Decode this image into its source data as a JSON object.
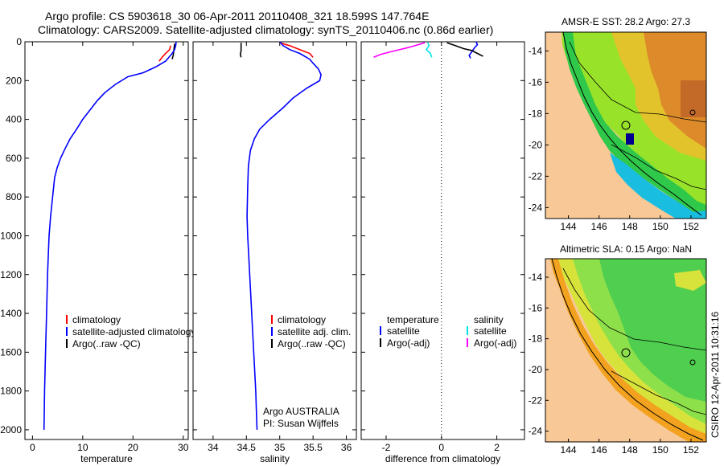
{
  "header": {
    "title_line1": "Argo profile: CS 5903618_30 06-Apr-2011 20110408_321 18.599S 147.764E",
    "title_line2": "Climatology: CARS2009. Satellite-adjusted climatology: synTS_20110406.nc (0.86d earlier)"
  },
  "side_label": "CSIRO 12-Apr-2011 10:31:16",
  "colors": {
    "climatology": "#ff0000",
    "satellite": "#0000ff",
    "argo": "#000000",
    "sat_salinity": "#00e5e5",
    "argo_salinity": "#ff00ff",
    "land": "#f8c896"
  },
  "chart_data": [
    {
      "id": "temperature",
      "type": "line",
      "xlabel": "temperature",
      "xlim": [
        -1.5,
        31
      ],
      "ylim": [
        0,
        2050
      ],
      "y_inverted": true,
      "xticks": [
        0,
        10,
        20,
        30
      ],
      "yticks": [
        0,
        200,
        400,
        600,
        800,
        1000,
        1200,
        1400,
        1600,
        1800,
        2000
      ],
      "legend": {
        "position": "lower-right",
        "entries": [
          {
            "label": "climatology",
            "color": "#ff0000"
          },
          {
            "label": "satellite-adjusted climatology",
            "color": "#0000ff"
          },
          {
            "label": "Argo(..raw -QC)",
            "color": "#000000"
          }
        ]
      },
      "series": [
        {
          "name": "climatology",
          "color": "#ff0000",
          "x": [
            27.5,
            27.3,
            26.5,
            25.8,
            25.2
          ],
          "y": [
            20,
            40,
            60,
            80,
            100
          ]
        },
        {
          "name": "Argo(..raw -QC)",
          "color": "#000000",
          "x": [
            28.3,
            28.2,
            28.1,
            28.0,
            27.8
          ],
          "y": [
            10,
            30,
            50,
            70,
            90
          ]
        },
        {
          "name": "satellite-adjusted climatology",
          "color": "#0000ff",
          "x": [
            28.6,
            28.5,
            28.3,
            27.8,
            26.5,
            24.5,
            22.0,
            19.0,
            16.5,
            14.5,
            13.0,
            11.5,
            10.0,
            8.8,
            7.5,
            6.5,
            5.6,
            4.9,
            4.4,
            4.0,
            3.6,
            3.3,
            3.0,
            2.8,
            2.6,
            2.4,
            2.3
          ],
          "y": [
            0,
            20,
            40,
            60,
            100,
            130,
            160,
            180,
            220,
            260,
            300,
            350,
            400,
            450,
            500,
            550,
            600,
            650,
            700,
            800,
            900,
            1000,
            1200,
            1400,
            1600,
            1800,
            2000
          ]
        }
      ]
    },
    {
      "id": "salinity",
      "type": "line",
      "xlabel": "salinity",
      "xlim": [
        33.7,
        36.15
      ],
      "ylim": [
        0,
        2050
      ],
      "y_inverted": true,
      "xticks": [
        34,
        34.5,
        35,
        35.5,
        36
      ],
      "xtick_labels": [
        "34",
        "34.5",
        "35",
        "35.5",
        "36"
      ],
      "legend": {
        "position": "lower-right",
        "entries": [
          {
            "label": "climatology",
            "color": "#ff0000"
          },
          {
            "label": "satellite adj. clim.",
            "color": "#0000ff"
          },
          {
            "label": "Argo(..raw -QC)",
            "color": "#000000"
          }
        ]
      },
      "annotation": [
        "Argo AUSTRALIA",
        "PI: Susan Wijffels"
      ],
      "series": [
        {
          "name": "climatology",
          "color": "#ff0000",
          "x": [
            35.0,
            35.15,
            35.3,
            35.45,
            35.5
          ],
          "y": [
            5,
            20,
            40,
            60,
            80
          ]
        },
        {
          "name": "Argo(..raw -QC)",
          "color": "#000000",
          "x": [
            34.42,
            34.42,
            34.42,
            34.41,
            34.42
          ],
          "y": [
            5,
            25,
            45,
            65,
            80
          ]
        },
        {
          "name": "satellite adj. clim.",
          "color": "#0000ff",
          "x": [
            35.0,
            35.05,
            35.15,
            35.3,
            35.45,
            35.5,
            35.58,
            35.62,
            35.6,
            35.4,
            35.2,
            35.05,
            34.85,
            34.7,
            34.62,
            34.56,
            34.53,
            34.52,
            34.51,
            34.52,
            34.55,
            34.58,
            34.61,
            34.64,
            34.66
          ],
          "y": [
            0,
            20,
            40,
            60,
            90,
            110,
            140,
            170,
            200,
            240,
            290,
            340,
            400,
            450,
            500,
            560,
            640,
            750,
            900,
            1000,
            1200,
            1400,
            1600,
            1800,
            2000
          ]
        }
      ]
    },
    {
      "id": "difference",
      "type": "line",
      "xlabel": "difference from climatology",
      "xlim": [
        -2.9,
        3.0
      ],
      "ylim": [
        0,
        2050
      ],
      "y_inverted": true,
      "xticks": [
        -2,
        0,
        2
      ],
      "zero_line": "dotted",
      "legend": {
        "position": "lower-right",
        "columns": [
          {
            "heading": "temperature",
            "entries": [
              {
                "label": "satellite",
                "color": "#0000ff"
              },
              {
                "label": "Argo(-adj)",
                "color": "#000000"
              }
            ]
          },
          {
            "heading": "salinity",
            "entries": [
              {
                "label": "satellite",
                "color": "#00e5e5"
              },
              {
                "label": "Argo(-adj)",
                "color": "#ff00ff"
              }
            ]
          }
        ]
      },
      "series": [
        {
          "name": "temperature satellite",
          "color": "#0000ff",
          "x": [
            1.25,
            1.3,
            1.2,
            1.1,
            1.0,
            1.05
          ],
          "y": [
            0,
            15,
            30,
            50,
            70,
            85
          ]
        },
        {
          "name": "temperature Argo(-adj)",
          "color": "#000000",
          "x": [
            0.2,
            0.5,
            0.8,
            1.1,
            1.3,
            1.5
          ],
          "y": [
            5,
            20,
            35,
            45,
            60,
            75
          ]
        },
        {
          "name": "salinity satellite",
          "color": "#00e5e5",
          "x": [
            -0.5,
            -0.45,
            -0.55,
            -0.4,
            -0.35
          ],
          "y": [
            5,
            20,
            40,
            60,
            80
          ]
        },
        {
          "name": "salinity Argo(-adj)",
          "color": "#ff00ff",
          "x": [
            -0.6,
            -1.2,
            -1.8,
            -2.2,
            -2.45
          ],
          "y": [
            5,
            30,
            50,
            65,
            80
          ]
        }
      ]
    },
    {
      "id": "sst_map",
      "type": "heatmap",
      "title": "AMSR-E SST: 28.2 Argo: 27.3",
      "xlim": [
        142.5,
        153
      ],
      "ylim": [
        -24.7,
        -12.8
      ],
      "xticks": [
        144,
        146,
        148,
        150,
        152
      ],
      "yticks": [
        -14,
        -16,
        -18,
        -20,
        -22,
        -24
      ],
      "argo_location": {
        "lon": 147.764,
        "lat": -18.599
      }
    },
    {
      "id": "sla_map",
      "type": "heatmap",
      "title": "Altimetric SLA: 0.15 Argo: NaN",
      "xlim": [
        142.5,
        153
      ],
      "ylim": [
        -24.7,
        -12.8
      ],
      "xticks": [
        144,
        146,
        148,
        150,
        152
      ],
      "yticks": [
        -14,
        -16,
        -18,
        -20,
        -22,
        -24
      ],
      "argo_location": {
        "lon": 147.764,
        "lat": -18.599
      }
    }
  ]
}
